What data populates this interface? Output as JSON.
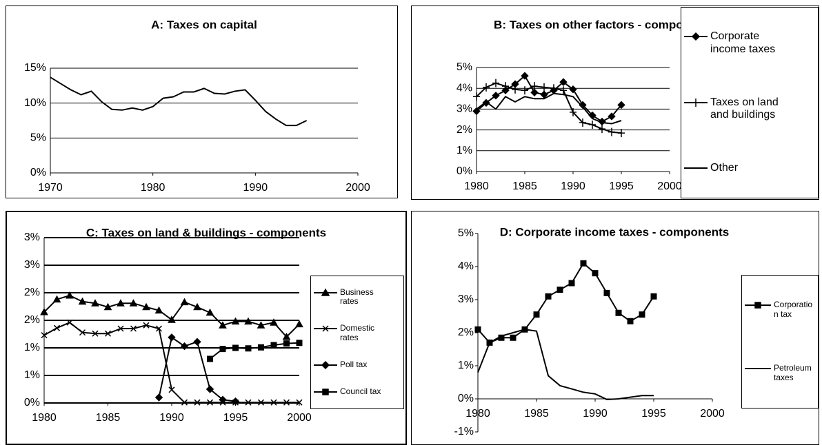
{
  "chart_data": [
    {
      "type": "line",
      "title": "A: Taxes on capital",
      "x": [
        1970,
        1971,
        1972,
        1973,
        1974,
        1975,
        1976,
        1977,
        1978,
        1979,
        1980,
        1981,
        1982,
        1983,
        1984,
        1985,
        1986,
        1987,
        1988,
        1989,
        1990,
        1991,
        1992,
        1993,
        1994,
        1995
      ],
      "series": [
        {
          "color": "#000000",
          "marker": "none",
          "values": [
            13.7,
            12.8,
            11.9,
            11.2,
            11.7,
            10.2,
            9.1,
            9.0,
            9.3,
            9.0,
            9.5,
            10.7,
            10.9,
            11.6,
            11.6,
            12.1,
            11.4,
            11.3,
            11.7,
            11.9,
            10.4,
            8.8,
            7.7,
            6.8,
            6.8,
            7.5
          ]
        }
      ],
      "xlim": [
        1970,
        2000
      ],
      "xticks": [
        1970,
        1980,
        1990,
        2000
      ],
      "ylim": [
        0,
        15
      ],
      "yticks": [
        {
          "value": 0,
          "label": "0%"
        },
        {
          "value": 5,
          "label": "5%"
        },
        {
          "value": 10,
          "label": "10%"
        },
        {
          "value": 15,
          "label": "15%"
        }
      ],
      "grid": true
    },
    {
      "type": "line",
      "title": "B: Taxes on other factors - components",
      "x": [
        1980,
        1981,
        1982,
        1983,
        1984,
        1985,
        1986,
        1987,
        1988,
        1989,
        1990,
        1991,
        1992,
        1993,
        1994,
        1995
      ],
      "series": [
        {
          "name": "Corporate income taxes",
          "color": "#000000",
          "marker": "diamond",
          "values": [
            2.9,
            3.3,
            3.65,
            3.9,
            4.2,
            4.6,
            3.8,
            3.7,
            3.9,
            4.3,
            3.95,
            3.2,
            2.7,
            2.4,
            2.65,
            3.2
          ]
        },
        {
          "name": "Taxes on land and buildings",
          "color": "#000000",
          "marker": "plus",
          "values": [
            3.6,
            4.05,
            4.25,
            4.1,
            3.95,
            3.9,
            4.1,
            4.05,
            4.0,
            3.9,
            2.85,
            2.35,
            2.25,
            2.05,
            1.9,
            1.85
          ]
        },
        {
          "name": "Other",
          "color": "#000000",
          "marker": "none",
          "values": [
            3.0,
            3.35,
            3.0,
            3.6,
            3.35,
            3.6,
            3.5,
            3.5,
            3.75,
            3.7,
            3.6,
            3.1,
            2.55,
            2.35,
            2.3,
            2.45
          ]
        }
      ],
      "xlim": [
        1980,
        2000
      ],
      "xticks": [
        1980,
        1985,
        1990,
        1995,
        2000
      ],
      "ylim": [
        0,
        5
      ],
      "yticks": [
        {
          "value": 0,
          "label": "0%"
        },
        {
          "value": 1,
          "label": "1%"
        },
        {
          "value": 2,
          "label": "2%"
        },
        {
          "value": 3,
          "label": "3%"
        },
        {
          "value": 4,
          "label": "4%"
        },
        {
          "value": 5,
          "label": "5%"
        }
      ],
      "grid": true,
      "legend": "right"
    },
    {
      "type": "line",
      "title": "C: Taxes on land & buildings - components",
      "x": [
        1980,
        1981,
        1982,
        1983,
        1984,
        1985,
        1986,
        1987,
        1988,
        1989,
        1990,
        1991,
        1992,
        1993,
        1994,
        1995,
        1996,
        1997,
        1998,
        1999,
        2000
      ],
      "series": [
        {
          "name": "Business rates",
          "color": "#000000",
          "marker": "triangle",
          "values": [
            1.65,
            1.88,
            1.95,
            1.84,
            1.81,
            1.74,
            1.81,
            1.81,
            1.74,
            1.68,
            1.51,
            1.83,
            1.74,
            1.64,
            1.41,
            1.48,
            1.48,
            1.41,
            1.46,
            1.2,
            1.43
          ]
        },
        {
          "name": "Domestic rates",
          "color": "#000000",
          "marker": "cross",
          "values": [
            1.23,
            1.36,
            1.46,
            1.28,
            1.26,
            1.26,
            1.35,
            1.35,
            1.41,
            1.35,
            0.24,
            0.01,
            0.01,
            0.01,
            0.01,
            0.01,
            0.01,
            0.01,
            0.01,
            0.01,
            0.01
          ]
        },
        {
          "name": "Poll tax",
          "color": "#000000",
          "marker": "diamond",
          "values": [
            null,
            null,
            null,
            null,
            null,
            null,
            null,
            null,
            null,
            0.1,
            1.19,
            1.03,
            1.11,
            0.25,
            0.06,
            0.03,
            null,
            null,
            null,
            null,
            null
          ]
        },
        {
          "name": "Council tax",
          "color": "#000000",
          "marker": "square",
          "values": [
            null,
            null,
            null,
            null,
            null,
            null,
            null,
            null,
            null,
            null,
            null,
            null,
            null,
            0.8,
            0.98,
            1.0,
            0.99,
            1.01,
            1.05,
            1.08,
            1.09
          ]
        }
      ],
      "xlim": [
        1980,
        2000
      ],
      "xticks": [
        1980,
        1985,
        1990,
        1995,
        2000
      ],
      "ylim": [
        0,
        3
      ],
      "yticks": [
        {
          "value": 0,
          "label": "0%"
        },
        {
          "value": 0.5,
          "label": "1%"
        },
        {
          "value": 1,
          "label": "1%"
        },
        {
          "value": 1.5,
          "label": "2%"
        },
        {
          "value": 2,
          "label": "2%"
        },
        {
          "value": 2.5,
          "label": "3%"
        },
        {
          "value": 3,
          "label": "3%"
        }
      ],
      "grid": true,
      "legend": "right"
    },
    {
      "type": "line",
      "title": "D: Corporate income taxes - components",
      "x": [
        1980,
        1981,
        1982,
        1983,
        1984,
        1985,
        1986,
        1987,
        1988,
        1989,
        1990,
        1991,
        1992,
        1993,
        1994,
        1995
      ],
      "series": [
        {
          "name": "Corporation tax",
          "color": "#000000",
          "marker": "square",
          "values": [
            2.1,
            1.7,
            1.85,
            1.85,
            2.1,
            2.55,
            3.1,
            3.3,
            3.5,
            4.1,
            3.8,
            3.2,
            2.6,
            2.35,
            2.55,
            3.1
          ]
        },
        {
          "name": "Petroleum taxes",
          "color": "#000000",
          "marker": "none",
          "values": [
            0.8,
            1.7,
            1.9,
            2.0,
            2.1,
            2.05,
            0.7,
            0.4,
            0.3,
            0.2,
            0.15,
            -0.02,
            0.0,
            0.05,
            0.1,
            0.1
          ]
        }
      ],
      "xlim": [
        1980,
        2000
      ],
      "xticks": [
        1980,
        1985,
        1990,
        1995,
        2000
      ],
      "ylim": [
        -1,
        5
      ],
      "yticks": [
        {
          "value": -1,
          "label": "-1%"
        },
        {
          "value": 0,
          "label": "0%"
        },
        {
          "value": 1,
          "label": "1%"
        },
        {
          "value": 2,
          "label": "2%"
        },
        {
          "value": 3,
          "label": "3%"
        },
        {
          "value": 4,
          "label": "4%"
        },
        {
          "value": 5,
          "label": "5%"
        }
      ],
      "grid": false,
      "legend": "right"
    }
  ]
}
